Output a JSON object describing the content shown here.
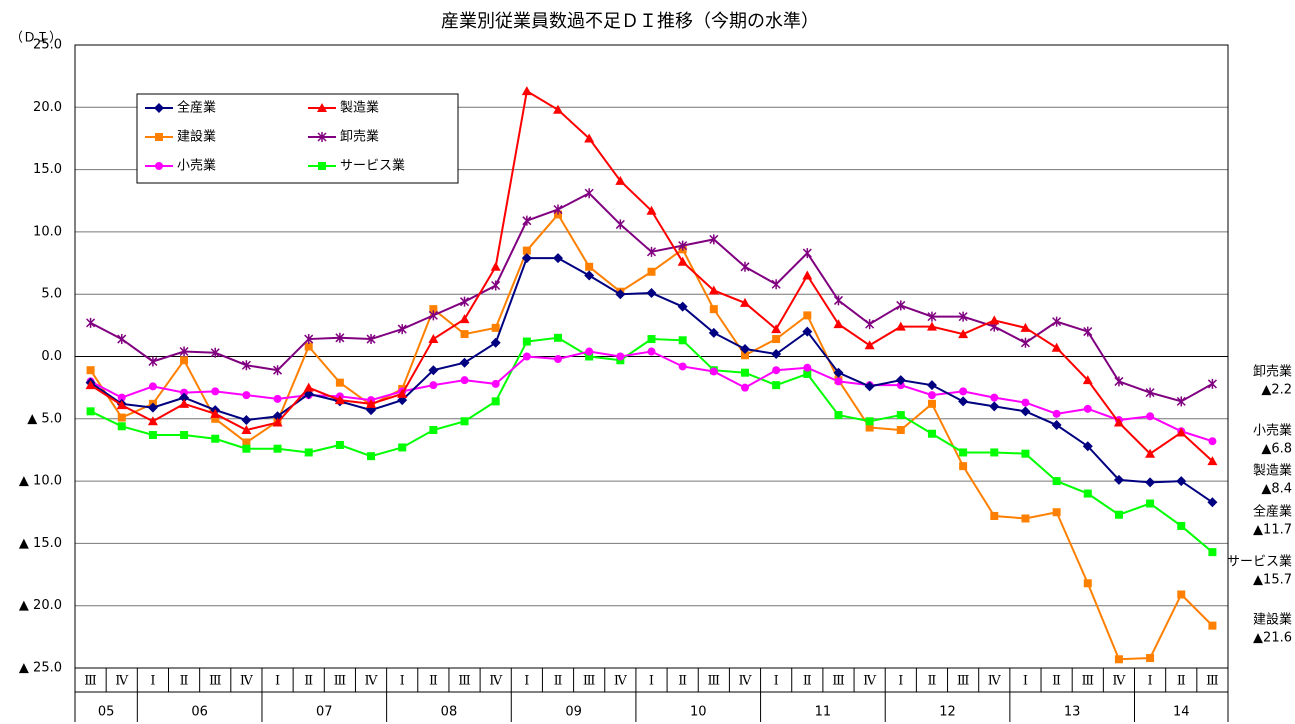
{
  "chart_data": {
    "type": "line",
    "title": "産業別従業員数過不足ＤＩ推移（今期の水準）",
    "y_label": "（ＤＩ）",
    "categories": [
      "Ⅲ",
      "Ⅳ",
      "Ⅰ",
      "Ⅱ",
      "Ⅲ",
      "Ⅳ",
      "Ⅰ",
      "Ⅱ",
      "Ⅲ",
      "Ⅳ",
      "Ⅰ",
      "Ⅱ",
      "Ⅲ",
      "Ⅳ",
      "Ⅰ",
      "Ⅱ",
      "Ⅲ",
      "Ⅳ",
      "Ⅰ",
      "Ⅱ",
      "Ⅲ",
      "Ⅳ",
      "Ⅰ",
      "Ⅱ",
      "Ⅲ",
      "Ⅳ",
      "Ⅰ",
      "Ⅱ",
      "Ⅲ",
      "Ⅳ",
      "Ⅰ",
      "Ⅱ",
      "Ⅲ",
      "Ⅳ",
      "Ⅰ",
      "Ⅱ",
      "Ⅲ"
    ],
    "years": [
      "05",
      "06",
      "07",
      "08",
      "09",
      "10",
      "11",
      "12",
      "13",
      "14"
    ],
    "ylim": [
      -25,
      25
    ],
    "yticks": [
      {
        "value": 25,
        "label": "25.0"
      },
      {
        "value": 20,
        "label": "20.0"
      },
      {
        "value": 15,
        "label": "15.0"
      },
      {
        "value": 10,
        "label": "10.0"
      },
      {
        "value": 5,
        "label": "5.0"
      },
      {
        "value": 0,
        "label": "0.0"
      },
      {
        "value": -5,
        "label": "▲ 5.0"
      },
      {
        "value": -10,
        "label": "▲ 10.0"
      },
      {
        "value": -15,
        "label": "▲ 15.0"
      },
      {
        "value": -20,
        "label": "▲ 20.0"
      },
      {
        "value": -25,
        "label": "▲ 25.0"
      }
    ],
    "grid": true,
    "series": [
      {
        "name": "全産業",
        "color": "#000080",
        "marker": "diamond",
        "values": [
          -2.1,
          -3.8,
          -4.1,
          -3.3,
          -4.3,
          -5.1,
          -4.8,
          -3.0,
          -3.6,
          -4.3,
          -3.5,
          -1.1,
          -0.5,
          1.1,
          7.9,
          7.9,
          6.5,
          5.0,
          5.1,
          4.0,
          1.9,
          0.6,
          0.2,
          2.0,
          -1.3,
          -2.4,
          -1.9,
          -2.3,
          -3.6,
          -4.0,
          -4.4,
          -5.5,
          -7.2,
          -9.9,
          -10.1,
          -10.0,
          -11.7
        ]
      },
      {
        "name": "製造業",
        "color": "#ff0000",
        "marker": "triangle",
        "values": [
          -2.3,
          -3.9,
          -5.2,
          -3.8,
          -4.6,
          -5.9,
          -5.3,
          -2.5,
          -3.5,
          -3.8,
          -3.0,
          1.4,
          3.0,
          7.2,
          21.3,
          19.8,
          17.5,
          14.1,
          11.7,
          7.6,
          5.3,
          4.3,
          2.2,
          6.5,
          2.6,
          0.9,
          2.4,
          2.4,
          1.8,
          2.9,
          2.3,
          0.7,
          -1.9,
          -5.3,
          -7.8,
          -6.1,
          -8.4
        ]
      },
      {
        "name": "建設業",
        "color": "#ff8000",
        "marker": "square",
        "values": [
          -1.1,
          -4.9,
          -3.8,
          -0.3,
          -5.0,
          -6.9,
          -5.2,
          0.8,
          -2.1,
          -3.9,
          -2.6,
          3.8,
          1.8,
          2.3,
          8.5,
          11.4,
          7.2,
          5.2,
          6.8,
          8.6,
          3.8,
          0.1,
          1.4,
          3.3,
          -1.9,
          -5.7,
          -5.9,
          -3.8,
          -8.8,
          -12.8,
          -13.0,
          -12.5,
          -18.2,
          -24.3,
          -24.2,
          -19.1,
          -21.6
        ]
      },
      {
        "name": "卸売業",
        "color": "#800080",
        "marker": "star",
        "values": [
          2.7,
          1.4,
          -0.4,
          0.4,
          0.3,
          -0.7,
          -1.1,
          1.4,
          1.5,
          1.4,
          2.2,
          3.3,
          4.4,
          5.7,
          10.9,
          11.8,
          13.1,
          10.6,
          8.4,
          8.9,
          9.4,
          7.2,
          5.8,
          8.3,
          4.5,
          2.6,
          4.1,
          3.2,
          3.2,
          2.4,
          1.1,
          2.8,
          2.0,
          -2.0,
          -2.9,
          -3.6,
          -2.2
        ]
      },
      {
        "name": "小売業",
        "color": "#ff00ff",
        "marker": "circle",
        "values": [
          -2.0,
          -3.3,
          -2.4,
          -2.9,
          -2.8,
          -3.1,
          -3.4,
          -3.1,
          -3.2,
          -3.5,
          -2.8,
          -2.3,
          -1.9,
          -2.2,
          0.0,
          -0.2,
          0.4,
          0.0,
          0.4,
          -0.8,
          -1.2,
          -2.5,
          -1.1,
          -0.9,
          -2.0,
          -2.3,
          -2.3,
          -3.1,
          -2.8,
          -3.3,
          -3.7,
          -4.6,
          -4.2,
          -5.1,
          -4.8,
          -6.0,
          -6.8
        ]
      },
      {
        "name": "サービス業",
        "color": "#00ff00",
        "marker": "square",
        "values": [
          -4.4,
          -5.6,
          -6.3,
          -6.3,
          -6.6,
          -7.4,
          -7.4,
          -7.7,
          -7.1,
          -8.0,
          -7.3,
          -5.9,
          -5.2,
          -3.6,
          1.2,
          1.5,
          0.0,
          -0.3,
          1.4,
          1.3,
          -1.1,
          -1.3,
          -2.3,
          -1.4,
          -4.7,
          -5.2,
          -4.7,
          -6.2,
          -7.7,
          -7.7,
          -7.8,
          -10.0,
          -11.0,
          -12.7,
          -11.8,
          -13.6,
          -15.7
        ]
      }
    ],
    "annotations": [
      {
        "name": "卸売業",
        "label": "▲2.2"
      },
      {
        "name": "小売業",
        "label": "▲6.8"
      },
      {
        "name": "製造業",
        "label": "▲8.4"
      },
      {
        "name": "全産業",
        "label": "▲11.7"
      },
      {
        "name": "サービス業",
        "label": "▲15.7"
      },
      {
        "name": "建設業",
        "label": "▲21.6"
      }
    ]
  }
}
